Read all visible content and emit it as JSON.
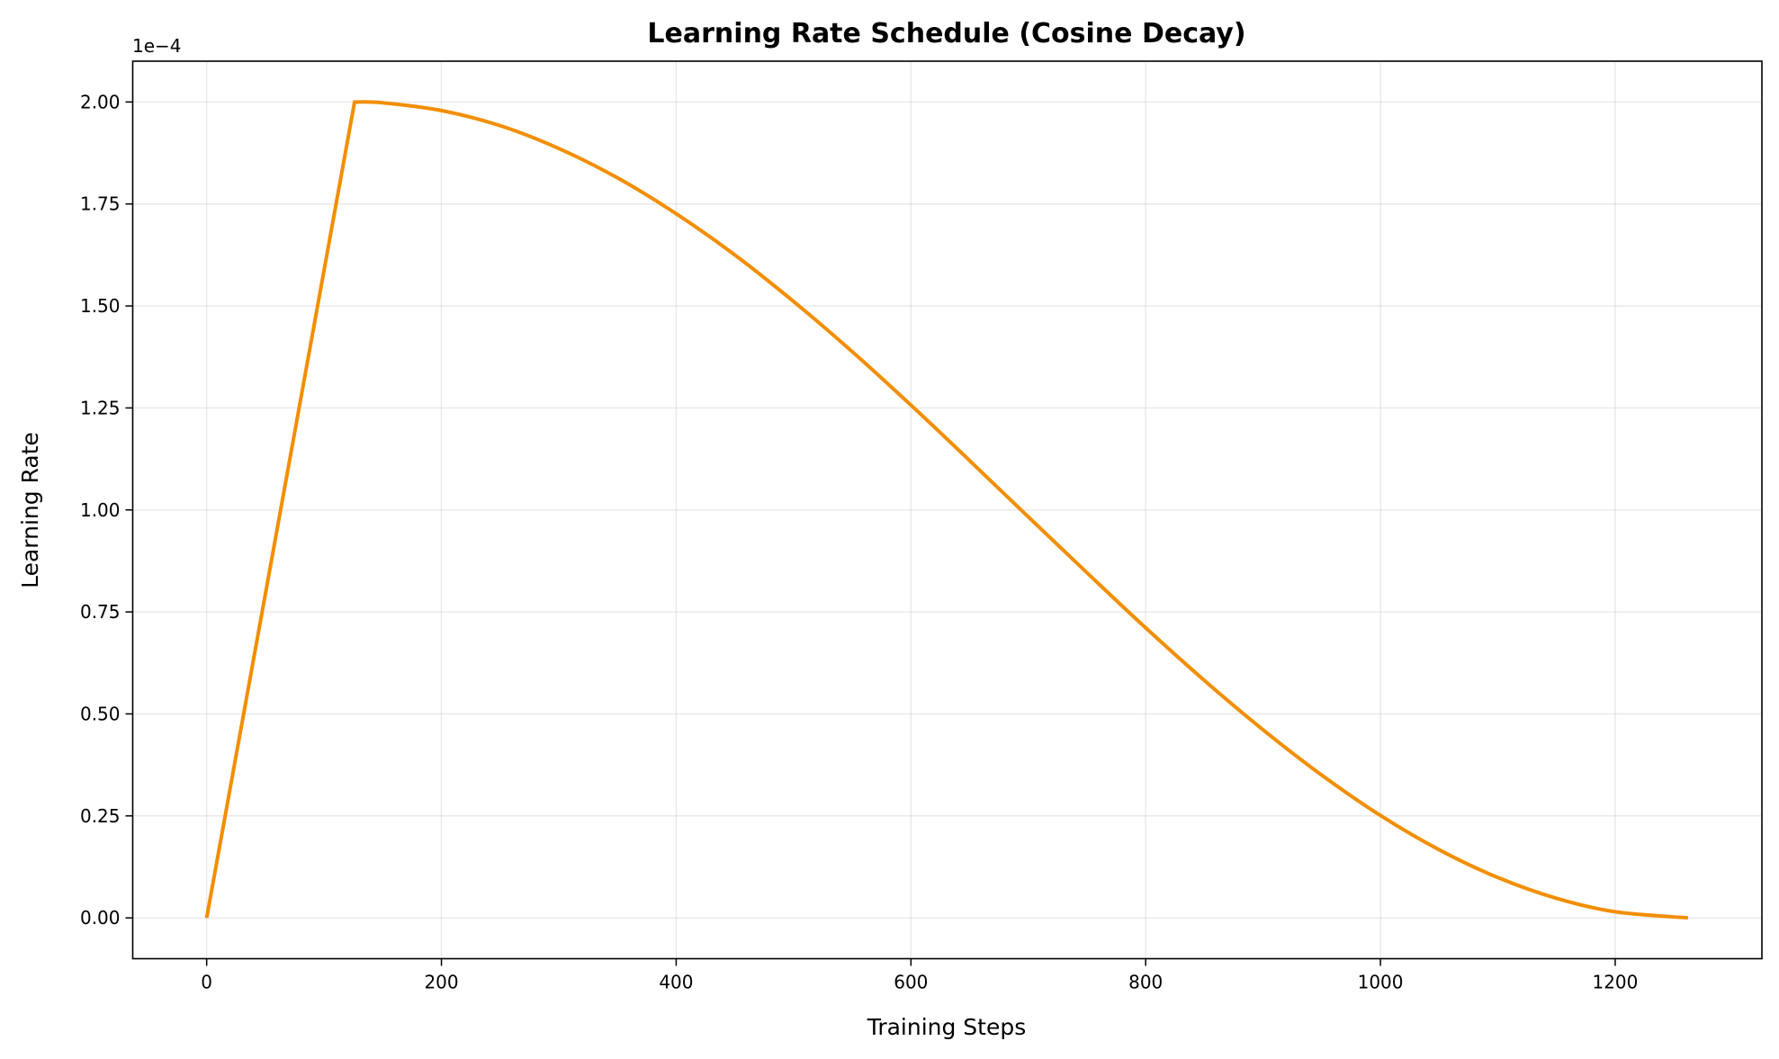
{
  "chart_data": {
    "type": "line",
    "title": "Learning Rate Schedule (Cosine Decay)",
    "xlabel": "Training Steps",
    "ylabel": "Learning Rate",
    "y_offset_label": "1e−4",
    "xlim": [
      -63,
      1325
    ],
    "ylim": [
      -0.1,
      2.1
    ],
    "xticks": [
      0,
      200,
      400,
      600,
      800,
      1000,
      1200
    ],
    "xtick_labels": [
      "0",
      "200",
      "400",
      "600",
      "800",
      "1000",
      "1200"
    ],
    "yticks": [
      0,
      0.25,
      0.5,
      0.75,
      1.0,
      1.25,
      1.5,
      1.75,
      2.0
    ],
    "ytick_labels": [
      "0.00",
      "0.25",
      "0.50",
      "0.75",
      "1.00",
      "1.25",
      "1.50",
      "1.75",
      "2.00"
    ],
    "grid": true,
    "color": "#F28E00",
    "series": [
      {
        "x": [
          0,
          126,
          150,
          200,
          250,
          300,
          350,
          400,
          450,
          500,
          550,
          600,
          650,
          700,
          750,
          800,
          850,
          900,
          950,
          1000,
          1050,
          1100,
          1150,
          1200,
          1262
        ],
        "y": [
          0,
          2.0,
          1.998,
          1.979,
          1.942,
          1.886,
          1.814,
          1.726,
          1.625,
          1.511,
          1.388,
          1.257,
          1.121,
          0.983,
          0.846,
          0.711,
          0.582,
          0.461,
          0.35,
          0.251,
          0.167,
          0.099,
          0.048,
          0.015,
          0
        ]
      }
    ]
  }
}
